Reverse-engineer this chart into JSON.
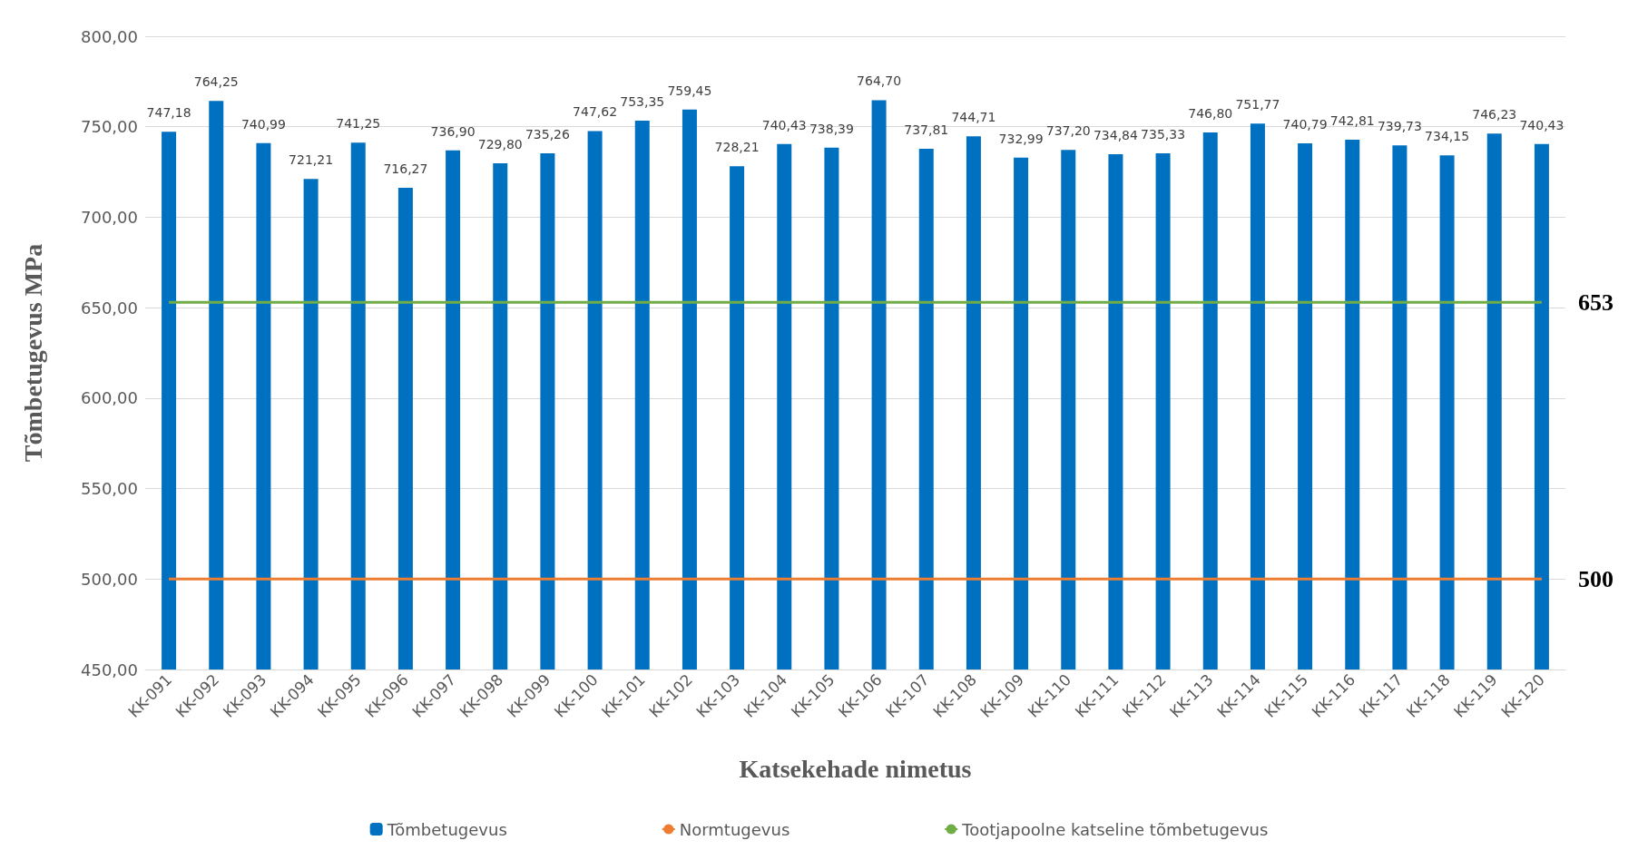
{
  "chart_data": {
    "type": "bar",
    "xlabel": "Katsekehade nimetus",
    "ylabel": "Tõmbetugevus MPa",
    "categories": [
      "KK-091",
      "KK-092",
      "KK-093",
      "KK-094",
      "KK-095",
      "KK-096",
      "KK-097",
      "KK-098",
      "KK-099",
      "KK-100",
      "KK-101",
      "KK-102",
      "KK-103",
      "KK-104",
      "KK-105",
      "KK-106",
      "KK-107",
      "KK-108",
      "KK-109",
      "KK-110",
      "KK-111",
      "KK-112",
      "KK-113",
      "KK-114",
      "KK-115",
      "KK-116",
      "KK-117",
      "KK-118",
      "KK-119",
      "KK-120"
    ],
    "series": [
      {
        "name": "Tõmbetugevus",
        "color": "#0070c0",
        "values": [
          747.18,
          764.25,
          740.99,
          721.21,
          741.25,
          716.27,
          736.9,
          729.8,
          735.26,
          747.62,
          753.35,
          759.45,
          728.21,
          740.43,
          738.39,
          764.7,
          737.81,
          744.71,
          732.99,
          737.2,
          734.84,
          735.33,
          746.8,
          751.77,
          740.79,
          742.81,
          739.73,
          734.15,
          746.23,
          740.43
        ],
        "value_labels": [
          "747,18",
          "764,25",
          "740,99",
          "721,21",
          "741,25",
          "716,27",
          "736,90",
          "729,80",
          "735,26",
          "747,62",
          "753,35",
          "759,45",
          "728,21",
          "740,43",
          "738,39",
          "764,70",
          "737,81",
          "744,71",
          "732,99",
          "737,20",
          "734,84",
          "735,33",
          "746,80",
          "751,77",
          "740,79",
          "742,81",
          "739,73",
          "734,15",
          "746,23",
          "740,43"
        ]
      },
      {
        "name": "Normtugevus",
        "type": "line",
        "color": "#ed7d31",
        "values": [
          500,
          500,
          500,
          500,
          500,
          500,
          500,
          500,
          500,
          500,
          500,
          500,
          500,
          500,
          500,
          500,
          500,
          500,
          500,
          500,
          500,
          500,
          500,
          500,
          500,
          500,
          500,
          500,
          500,
          500
        ],
        "value_labels": [
          null,
          null,
          null,
          null,
          null,
          null,
          null,
          null,
          null,
          null,
          null,
          null,
          null,
          null,
          null,
          null,
          null,
          null,
          null,
          null,
          null,
          null,
          null,
          null,
          null,
          null,
          null,
          null,
          null,
          "500"
        ]
      },
      {
        "name": "Tootjapoolne katseline tõmbetugevus",
        "type": "line",
        "color": "#70ad47",
        "values": [
          653,
          653,
          653,
          653,
          653,
          653,
          653,
          653,
          653,
          653,
          653,
          653,
          653,
          653,
          653,
          653,
          653,
          653,
          653,
          653,
          653,
          653,
          653,
          653,
          653,
          653,
          653,
          653,
          653,
          653
        ],
        "value_labels": [
          null,
          null,
          null,
          null,
          null,
          null,
          null,
          null,
          null,
          null,
          null,
          null,
          null,
          null,
          null,
          null,
          null,
          null,
          null,
          null,
          null,
          null,
          null,
          null,
          null,
          null,
          null,
          null,
          null,
          "653"
        ]
      }
    ],
    "ylim": [
      450,
      800
    ],
    "yticks": [
      {
        "value": 450,
        "label": "450,00"
      },
      {
        "value": 500,
        "label": "500,00"
      },
      {
        "value": 550,
        "label": "550,00"
      },
      {
        "value": 600,
        "label": "600,00"
      },
      {
        "value": 650,
        "label": "650,00"
      },
      {
        "value": 700,
        "label": "700,00"
      },
      {
        "value": 750,
        "label": "750,00"
      },
      {
        "value": 800,
        "label": "800,00"
      }
    ],
    "grid": "y",
    "legend": "bottom",
    "marker": "none"
  }
}
